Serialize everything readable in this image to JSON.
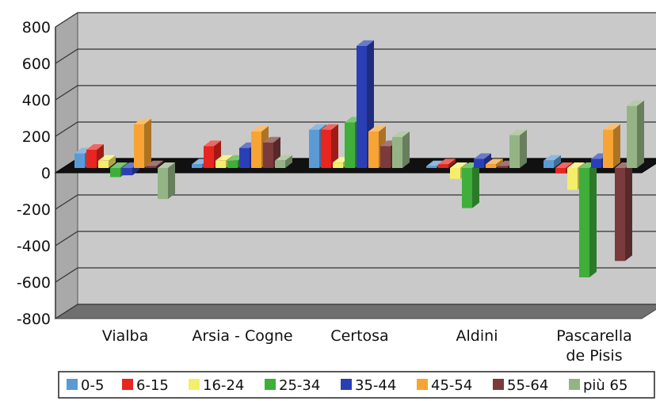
{
  "chart_data": {
    "type": "bar",
    "title": "",
    "xlabel": "",
    "ylabel": "",
    "ylim": [
      -800,
      800
    ],
    "yticks": [
      "800",
      "600",
      "400",
      "200",
      "0",
      "-200",
      "-400",
      "-600",
      "-800"
    ],
    "categories": [
      "Vialba",
      "Arsia - Cogne",
      "Certosa",
      "Aldini",
      "Pascarella de Pisis"
    ],
    "category_lines": [
      [
        "Vialba"
      ],
      [
        "Arsia - Cogne"
      ],
      [
        "Certosa"
      ],
      [
        "Aldini"
      ],
      [
        "Pascarella",
        "de Pisis"
      ]
    ],
    "grid": true,
    "legend_position": "bottom",
    "series": [
      {
        "name": "0-5",
        "color": "#5b9bd5",
        "values": [
          80,
          20,
          210,
          10,
          40
        ]
      },
      {
        "name": "6-15",
        "color": "#e8251f",
        "values": [
          100,
          120,
          210,
          20,
          -30
        ]
      },
      {
        "name": "16-24",
        "color": "#f3ef6a",
        "values": [
          40,
          40,
          30,
          -60,
          -120
        ]
      },
      {
        "name": "25-34",
        "color": "#3fae3a",
        "values": [
          -50,
          40,
          250,
          -220,
          -600
        ]
      },
      {
        "name": "35-44",
        "color": "#2a3fb5",
        "values": [
          -40,
          110,
          670,
          50,
          50
        ]
      },
      {
        "name": "45-54",
        "color": "#f7a434",
        "values": [
          240,
          200,
          200,
          20,
          210
        ]
      },
      {
        "name": "55-64",
        "color": "#7b3a3c",
        "values": [
          10,
          140,
          120,
          10,
          -510
        ]
      },
      {
        "name": "più 65",
        "color": "#95b485",
        "values": [
          -170,
          40,
          170,
          180,
          340
        ]
      }
    ]
  }
}
